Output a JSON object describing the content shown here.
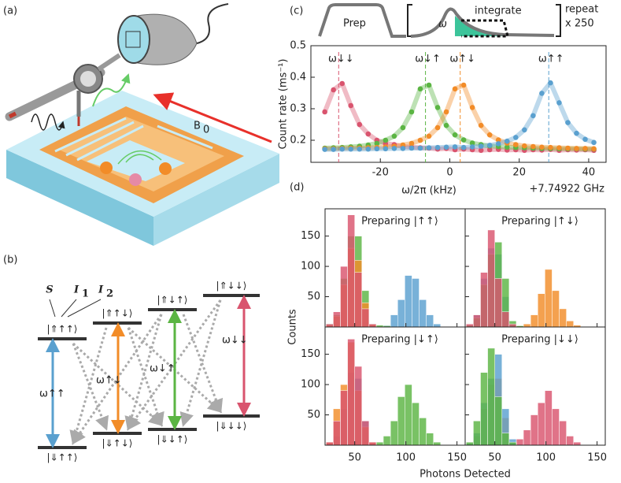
{
  "panel_labels": [
    "(a)",
    "(b)",
    "(c)",
    "(d)"
  ],
  "setup": {
    "field_label": "B",
    "field_subscript": "0"
  },
  "spins": [
    {
      "symbol": "S"
    },
    {
      "symbol": "I",
      "subscript": "1"
    },
    {
      "symbol": "I",
      "subscript": "2"
    }
  ],
  "upper_levels": [
    "|⇑↑↑⟩",
    "|⇑↑↓⟩",
    "|⇑↓↑⟩",
    "|⇑↓↓⟩"
  ],
  "lower_levels": [
    "|⇓↑↑⟩",
    "|⇓↑↓⟩",
    "|⇓↓↑⟩",
    "|⇓↓↓⟩"
  ],
  "transitions": [
    {
      "label": "ω↑↑",
      "color": "#5aa0cf"
    },
    {
      "label": "ω↑↓",
      "color": "#f28c28"
    },
    {
      "label": "ω↓↑",
      "color": "#5bb543"
    },
    {
      "label": "ω↓↓",
      "color": "#d9546e"
    }
  ],
  "pulse": {
    "prep": "Prep",
    "frequency": "ω",
    "integrate": "integrate",
    "repeat": "repeat",
    "count": "x 250"
  },
  "chart_data": [
    {
      "type": "line",
      "xlabel": "ω/2π (kHz)",
      "ylabel": "Count rate (ms⁻¹)",
      "x_offset_label": "+7.74922 GHz",
      "x": [
        -36,
        -33.5,
        -31,
        -28.5,
        -26,
        -23.5,
        -21,
        -18.5,
        -16,
        -13.5,
        -11,
        -8.5,
        -6,
        -3.5,
        -1,
        1.5,
        4,
        6.5,
        9,
        11.5,
        14,
        16.5,
        19,
        21.5,
        24,
        26.5,
        29,
        31.5,
        34,
        36.5,
        39,
        41.5
      ],
      "series": [
        {
          "name": "ω↓↓",
          "color": "#d9546e",
          "center": -32,
          "values": [
            0.29,
            0.36,
            0.38,
            0.31,
            0.25,
            0.22,
            0.2,
            0.19,
            0.186,
            0.18,
            0.178,
            0.176,
            0.175,
            0.172,
            0.174,
            0.17,
            0.172,
            0.17,
            0.168,
            0.17,
            0.171,
            0.169,
            0.17,
            0.168,
            0.17,
            0.169,
            0.171,
            0.168,
            0.17,
            0.169,
            0.17,
            0.168
          ]
        },
        {
          "name": "ω↓↑",
          "color": "#5bb543",
          "center": -7,
          "values": [
            0.175,
            0.176,
            0.177,
            0.179,
            0.181,
            0.185,
            0.19,
            0.2,
            0.213,
            0.24,
            0.29,
            0.363,
            0.375,
            0.304,
            0.247,
            0.217,
            0.201,
            0.191,
            0.186,
            0.182,
            0.18,
            0.178,
            0.177,
            0.176,
            0.175,
            0.174,
            0.174,
            0.173,
            0.173,
            0.173,
            0.172,
            0.172
          ]
        },
        {
          "name": "ω↑↓",
          "color": "#f28c28",
          "center": 3,
          "values": [
            0.173,
            0.173,
            0.174,
            0.175,
            0.175,
            0.176,
            0.177,
            0.179,
            0.181,
            0.185,
            0.19,
            0.2,
            0.213,
            0.24,
            0.29,
            0.363,
            0.375,
            0.304,
            0.247,
            0.217,
            0.201,
            0.191,
            0.186,
            0.182,
            0.18,
            0.178,
            0.177,
            0.176,
            0.175,
            0.174,
            0.174,
            0.173
          ]
        },
        {
          "name": "ω↑↑",
          "color": "#5aa0cf",
          "center": 28.5,
          "values": [
            0.171,
            0.171,
            0.172,
            0.172,
            0.172,
            0.172,
            0.173,
            0.173,
            0.174,
            0.174,
            0.175,
            0.175,
            0.176,
            0.177,
            0.178,
            0.179,
            0.177,
            0.179,
            0.181,
            0.184,
            0.189,
            0.197,
            0.209,
            0.233,
            0.278,
            0.349,
            0.382,
            0.319,
            0.256,
            0.222,
            0.203,
            0.193
          ]
        }
      ],
      "xlim": [
        -40,
        45
      ],
      "ylim": [
        0.13,
        0.5
      ],
      "xticks": [
        -20,
        0,
        20,
        40
      ],
      "yticks": [
        0.2,
        0.3,
        0.4,
        0.5
      ]
    },
    {
      "type": "histogram",
      "title": "Preparing |↑↑⟩",
      "title_color": "#5aa0cf",
      "ylabel": "Counts",
      "bins": [
        22,
        29,
        36,
        43,
        50,
        57,
        64,
        71,
        78,
        85,
        92,
        99,
        106,
        113,
        120,
        127,
        134
      ],
      "series": [
        {
          "color": "#5aa0cf",
          "values": [
            0,
            0,
            0,
            5,
            10,
            5,
            3,
            0,
            3,
            20,
            45,
            85,
            80,
            45,
            20,
            5
          ]
        },
        {
          "color": "#5bb543",
          "values": [
            5,
            20,
            80,
            150,
            150,
            60,
            5,
            3,
            2,
            0,
            0,
            0,
            0,
            0,
            0,
            0
          ]
        },
        {
          "color": "#f28c28",
          "values": [
            3,
            18,
            70,
            130,
            110,
            40,
            4,
            0,
            0,
            0,
            0,
            0,
            0,
            0,
            0,
            0
          ]
        },
        {
          "color": "#d9546e",
          "values": [
            5,
            25,
            100,
            185,
            90,
            30,
            5,
            0,
            0,
            0,
            0,
            0,
            0,
            0,
            0,
            0
          ]
        }
      ],
      "xlim": [
        21,
        158
      ],
      "ylim": [
        0,
        195
      ],
      "xticks": [
        50,
        100,
        150
      ],
      "yticks": [
        50,
        100,
        150
      ]
    },
    {
      "type": "histogram",
      "title": "Preparing |↑↓⟩",
      "title_color": "#f28c28",
      "bins": [
        22,
        29,
        36,
        43,
        50,
        57,
        64,
        71,
        78,
        85,
        92,
        99,
        106,
        113,
        120,
        127,
        134
      ],
      "series": [
        {
          "color": "#f28c28",
          "values": [
            0,
            0,
            0,
            3,
            5,
            3,
            2,
            2,
            5,
            20,
            55,
            95,
            60,
            30,
            10,
            3
          ]
        },
        {
          "color": "#5aa0cf",
          "values": [
            3,
            20,
            80,
            130,
            120,
            50,
            5,
            0,
            0,
            0,
            0,
            0,
            0,
            0,
            0,
            0
          ]
        },
        {
          "color": "#5bb543",
          "values": [
            3,
            15,
            70,
            120,
            140,
            80,
            10,
            2,
            0,
            0,
            0,
            0,
            0,
            0,
            0,
            0
          ]
        },
        {
          "color": "#d9546e",
          "values": [
            5,
            20,
            90,
            160,
            80,
            25,
            5,
            0,
            0,
            0,
            0,
            0,
            0,
            0,
            0,
            0
          ]
        }
      ],
      "xlim": [
        21,
        158
      ],
      "ylim": [
        0,
        195
      ],
      "xticks": [
        50,
        100,
        150
      ],
      "yticks": [
        50,
        100,
        150
      ]
    },
    {
      "type": "histogram",
      "title": "Preparing |↓↑⟩",
      "title_color": "#5bb543",
      "xlabel": "Photons Detected",
      "bins": [
        22,
        29,
        36,
        43,
        50,
        57,
        64,
        71,
        78,
        85,
        92,
        99,
        106,
        113,
        120,
        127,
        134
      ],
      "series": [
        {
          "color": "#5bb543",
          "values": [
            0,
            0,
            0,
            3,
            5,
            5,
            3,
            5,
            15,
            40,
            80,
            100,
            70,
            45,
            20,
            5
          ]
        },
        {
          "color": "#5aa0cf",
          "values": [
            2,
            15,
            60,
            120,
            110,
            40,
            3,
            0,
            0,
            0,
            0,
            0,
            0,
            0,
            0,
            0
          ]
        },
        {
          "color": "#f28c28",
          "values": [
            5,
            60,
            100,
            170,
            90,
            30,
            5,
            0,
            0,
            0,
            0,
            0,
            0,
            0,
            0,
            0
          ]
        },
        {
          "color": "#d9546e",
          "values": [
            5,
            40,
            90,
            175,
            130,
            40,
            5,
            0,
            0,
            0,
            0,
            0,
            0,
            0,
            0,
            0
          ]
        }
      ],
      "xlim": [
        21,
        158
      ],
      "ylim": [
        0,
        195
      ],
      "xticks": [
        50,
        100,
        150
      ],
      "yticks": [
        50,
        100,
        150
      ]
    },
    {
      "type": "histogram",
      "title": "Preparing |↓↓⟩",
      "title_color": "#d9546e",
      "bins": [
        22,
        29,
        36,
        43,
        50,
        57,
        64,
        71,
        78,
        85,
        92,
        99,
        106,
        113,
        120,
        127,
        134
      ],
      "series": [
        {
          "color": "#d9546e",
          "values": [
            0,
            0,
            0,
            3,
            8,
            5,
            5,
            10,
            25,
            50,
            70,
            90,
            60,
            40,
            15,
            5
          ]
        },
        {
          "color": "#f28c28",
          "values": [
            3,
            15,
            60,
            100,
            110,
            45,
            5,
            0,
            0,
            0,
            0,
            0,
            0,
            0,
            0,
            0
          ]
        },
        {
          "color": "#5aa0cf",
          "values": [
            3,
            20,
            70,
            110,
            150,
            60,
            10,
            0,
            0,
            0,
            0,
            0,
            0,
            0,
            0,
            0
          ]
        },
        {
          "color": "#5bb543",
          "values": [
            5,
            40,
            120,
            160,
            80,
            20,
            5,
            0,
            0,
            0,
            0,
            0,
            0,
            0,
            0,
            0
          ]
        }
      ],
      "xlim": [
        21,
        158
      ],
      "ylim": [
        0,
        195
      ],
      "xticks": [
        50,
        100,
        150
      ],
      "yticks": [
        50,
        100,
        150
      ]
    }
  ]
}
